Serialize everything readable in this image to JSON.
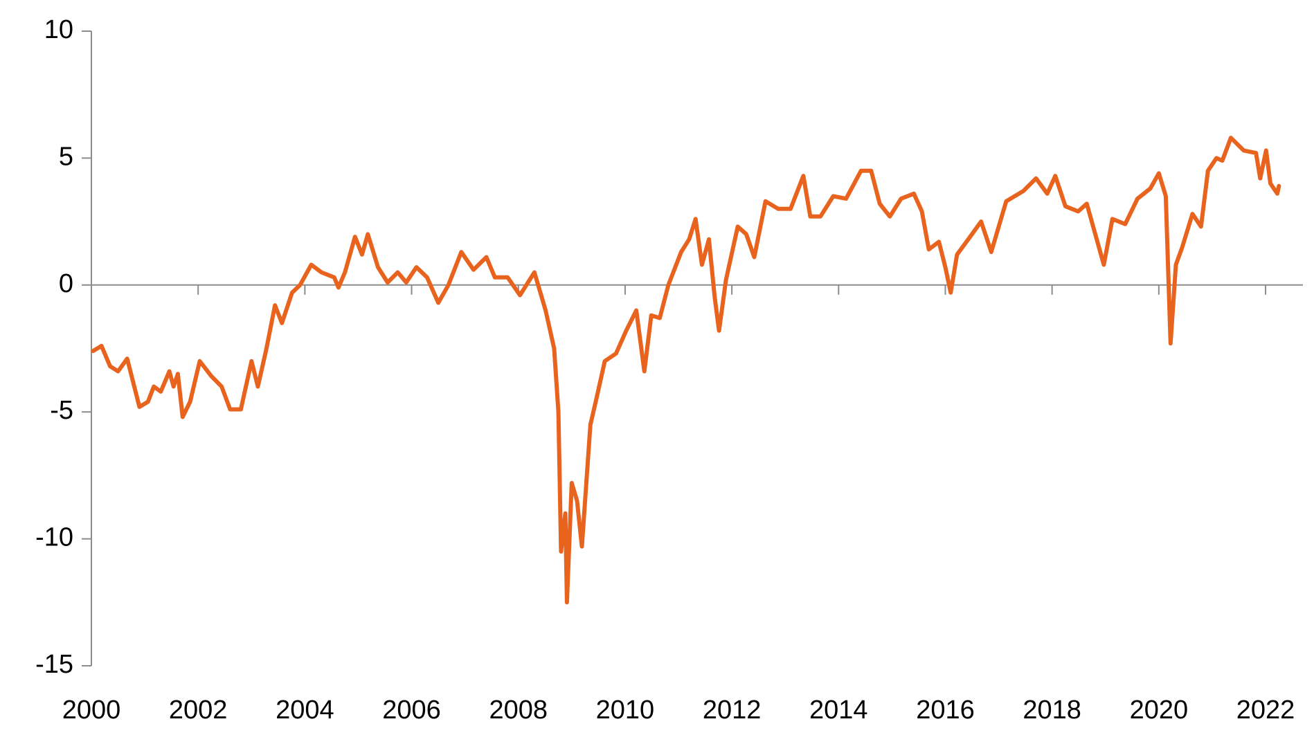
{
  "chart_data": {
    "type": "line",
    "x": [
      2000.03,
      2000.19,
      2000.35,
      2000.5,
      2000.67,
      2000.9,
      2001.06,
      2001.17,
      2001.3,
      2001.46,
      2001.54,
      2001.62,
      2001.71,
      2001.85,
      2002.03,
      2002.25,
      2002.44,
      2002.6,
      2002.8,
      2003.0,
      2003.12,
      2003.28,
      2003.44,
      2003.57,
      2003.76,
      2003.91,
      2004.12,
      2004.31,
      2004.55,
      2004.63,
      2004.75,
      2004.94,
      2005.07,
      2005.18,
      2005.37,
      2005.55,
      2005.74,
      2005.9,
      2006.09,
      2006.29,
      2006.5,
      2006.69,
      2006.93,
      2007.16,
      2007.4,
      2007.56,
      2007.8,
      2008.03,
      2008.3,
      2008.51,
      2008.67,
      2008.75,
      2008.8,
      2008.88,
      2008.91,
      2009.0,
      2009.1,
      2009.19,
      2009.35,
      2009.46,
      2009.62,
      2009.83,
      2010.02,
      2010.21,
      2010.36,
      2010.49,
      2010.65,
      2010.81,
      2011.05,
      2011.2,
      2011.32,
      2011.44,
      2011.57,
      2011.68,
      2011.76,
      2011.89,
      2012.11,
      2012.27,
      2012.42,
      2012.63,
      2012.87,
      2013.1,
      2013.34,
      2013.47,
      2013.66,
      2013.9,
      2014.14,
      2014.42,
      2014.61,
      2014.77,
      2014.96,
      2015.17,
      2015.41,
      2015.56,
      2015.69,
      2015.88,
      2016.0,
      2016.1,
      2016.22,
      2016.43,
      2016.67,
      2016.86,
      2017.14,
      2017.46,
      2017.7,
      2017.91,
      2018.06,
      2018.25,
      2018.49,
      2018.65,
      2018.81,
      2018.97,
      2019.13,
      2019.37,
      2019.6,
      2019.84,
      2020.0,
      2020.13,
      2020.22,
      2020.32,
      2020.44,
      2020.63,
      2020.79,
      2020.92,
      2021.08,
      2021.19,
      2021.35,
      2021.59,
      2021.82,
      2021.9,
      2022.01,
      2022.09,
      2022.22,
      2022.25
    ],
    "series": [
      {
        "color": "#e8641e",
        "values": [
          -2.6,
          -2.4,
          -3.2,
          -3.4,
          -2.9,
          -4.8,
          -4.6,
          -4.0,
          -4.2,
          -3.4,
          -4.0,
          -3.5,
          -5.2,
          -4.6,
          -3.0,
          -3.6,
          -4.0,
          -4.9,
          -4.9,
          -3.0,
          -4.0,
          -2.5,
          -0.8,
          -1.5,
          -0.3,
          0.0,
          0.8,
          0.5,
          0.3,
          -0.1,
          0.5,
          1.9,
          1.2,
          2.0,
          0.7,
          0.1,
          0.5,
          0.1,
          0.7,
          0.3,
          -0.7,
          0.0,
          1.3,
          0.6,
          1.1,
          0.3,
          0.3,
          -0.4,
          0.5,
          -1.0,
          -2.5,
          -5.0,
          -10.5,
          -9.0,
          -12.5,
          -7.8,
          -8.5,
          -10.3,
          -5.5,
          -4.5,
          -3.0,
          -2.7,
          -1.8,
          -1.0,
          -3.4,
          -1.2,
          -1.3,
          0.0,
          1.3,
          1.8,
          2.6,
          0.8,
          1.8,
          -0.5,
          -1.8,
          0.2,
          2.3,
          2.0,
          1.1,
          3.3,
          3.0,
          3.0,
          4.3,
          2.7,
          2.7,
          3.5,
          3.4,
          4.5,
          4.5,
          3.2,
          2.7,
          3.4,
          3.6,
          2.9,
          1.4,
          1.7,
          0.7,
          -0.3,
          1.2,
          1.8,
          2.5,
          1.3,
          3.3,
          3.7,
          4.2,
          3.6,
          4.3,
          3.1,
          2.9,
          3.2,
          2.0,
          0.8,
          2.6,
          2.4,
          3.4,
          3.8,
          4.4,
          3.5,
          -2.3,
          0.8,
          1.5,
          2.8,
          2.3,
          4.5,
          5.0,
          4.9,
          5.8,
          5.3,
          5.2,
          4.2,
          5.3,
          4.0,
          3.6,
          3.9
        ]
      }
    ],
    "xlim": [
      2000,
      2022.7
    ],
    "xticks": [
      2000,
      2002,
      2004,
      2006,
      2008,
      2010,
      2012,
      2014,
      2016,
      2018,
      2020,
      2022
    ],
    "ylim": [
      -15,
      10
    ],
    "yticks": [
      -15,
      -10,
      -5,
      0,
      5,
      10
    ]
  }
}
